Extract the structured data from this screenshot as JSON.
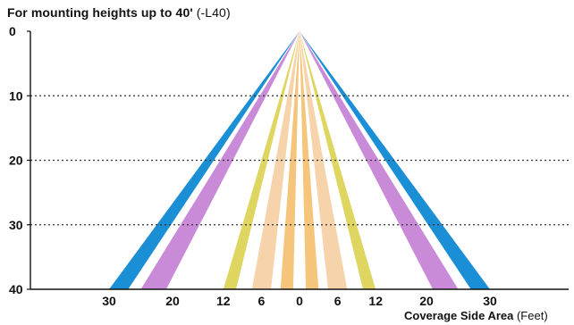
{
  "title": {
    "main": "For mounting heights up to 40'",
    "suffix": " (-L40)"
  },
  "x_axis": {
    "label_main": "Coverage Side Area",
    "label_unit": " (Feet)",
    "ticks": [
      "30",
      "20",
      "12",
      "6",
      "0",
      "6",
      "12",
      "20",
      "30"
    ]
  },
  "y_axis": {
    "ticks": [
      "0",
      "10",
      "20",
      "30",
      "40"
    ]
  },
  "colors": {
    "blue": "#1a8fd6",
    "violet": "#c98ad8",
    "yellow": "#dfd661",
    "peach": "#f6d3aa",
    "orange": "#f4c57a",
    "axis": "#111111",
    "grid": "#333333"
  },
  "chart_data": {
    "type": "diagram",
    "x_unit": "Feet",
    "y_unit": "Feet (mounting height)",
    "origin": [
      0,
      0
    ],
    "max_height": 40,
    "beams": [
      {
        "color_key": "blue",
        "side": "left",
        "x_at_40": [
          -30,
          -27
        ]
      },
      {
        "color_key": "violet",
        "side": "left",
        "x_at_40": [
          -25,
          -21
        ]
      },
      {
        "color_key": "yellow",
        "side": "left",
        "x_at_40": [
          -12,
          -10
        ]
      },
      {
        "color_key": "peach",
        "side": "left",
        "x_at_40": [
          -7.5,
          -4.5
        ]
      },
      {
        "color_key": "orange",
        "side": "left",
        "x_at_40": [
          -3,
          -1
        ]
      },
      {
        "color_key": "orange",
        "side": "right",
        "x_at_40": [
          1,
          3
        ]
      },
      {
        "color_key": "peach",
        "side": "right",
        "x_at_40": [
          4.5,
          7.5
        ]
      },
      {
        "color_key": "yellow",
        "side": "right",
        "x_at_40": [
          10,
          12
        ]
      },
      {
        "color_key": "violet",
        "side": "right",
        "x_at_40": [
          21,
          25
        ]
      },
      {
        "color_key": "blue",
        "side": "right",
        "x_at_40": [
          27,
          30
        ]
      }
    ],
    "gridlines_at_height": [
      10,
      20,
      30
    ]
  }
}
